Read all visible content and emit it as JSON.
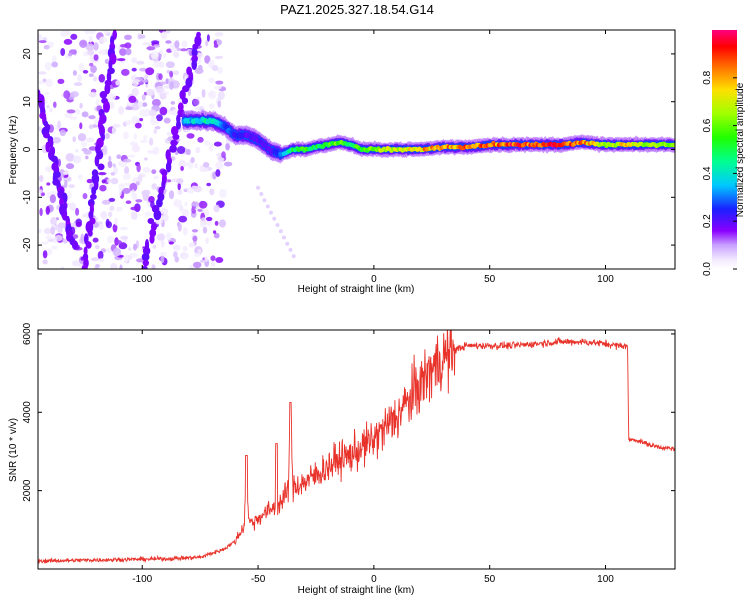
{
  "title": "PAZ1.2025.327.18.54.G14",
  "chart_data": [
    {
      "type": "heatmap",
      "name": "spectrogram",
      "xlabel": "Height of straight line (km)",
      "ylabel": "Frequency (Hz)",
      "xlim": [
        -145,
        130
      ],
      "ylim": [
        -25,
        25
      ],
      "xticks": [
        -100,
        -50,
        0,
        50,
        100
      ],
      "yticks": [
        -20,
        -10,
        0,
        10,
        20
      ],
      "xtick_labels": [
        "-100",
        "-50",
        "0",
        "50",
        "100"
      ],
      "ytick_labels": [
        "-20",
        "-10",
        "0",
        "10",
        "20"
      ],
      "colorbar": {
        "label": "Normalized spectral amplitude",
        "range": [
          0,
          1
        ],
        "ticks": [
          0.0,
          0.2,
          0.4,
          0.6,
          0.8
        ],
        "tick_labels": [
          "0.0",
          "0.2",
          "0.4",
          "0.6",
          "0.8"
        ]
      },
      "ridge": {
        "description": "dominant frequency track",
        "height_km": [
          -82,
          -75,
          -70,
          -65,
          -60,
          -55,
          -50,
          -45,
          -40,
          -35,
          -30,
          -25,
          -20,
          -15,
          -10,
          -5,
          0,
          10,
          20,
          30,
          40,
          50,
          60,
          70,
          80,
          90,
          100,
          110,
          120,
          130
        ],
        "frequency_hz": [
          6,
          6,
          6,
          5,
          3,
          3,
          2,
          0,
          -1,
          0,
          0,
          0.5,
          1,
          1.5,
          1,
          0,
          0,
          0,
          0,
          0.5,
          0.5,
          1,
          1,
          1,
          1,
          1.5,
          1,
          1,
          1,
          1
        ],
        "amplitude": [
          0.35,
          0.4,
          0.45,
          0.3,
          0.25,
          0.2,
          0.2,
          0.2,
          0.3,
          0.5,
          0.55,
          0.5,
          0.6,
          0.6,
          0.55,
          0.6,
          0.65,
          0.7,
          0.8,
          0.8,
          0.85,
          0.85,
          0.9,
          0.9,
          0.9,
          0.85,
          0.7,
          0.75,
          0.65,
          0.6
        ]
      }
    },
    {
      "type": "line",
      "name": "snr",
      "xlabel": "Height of straight line (km)",
      "ylabel": "SNR (10 * v/v)",
      "xlim": [
        -145,
        130
      ],
      "ylim": [
        0,
        6100
      ],
      "xticks": [
        -100,
        -50,
        0,
        50,
        100
      ],
      "yticks": [
        2000,
        4000,
        6000
      ],
      "xtick_labels": [
        "-100",
        "-50",
        "0",
        "50",
        "100"
      ],
      "ytick_labels": [
        "2000",
        "4000",
        "6000"
      ],
      "color": "#e8322a",
      "series": [
        {
          "name": "SNR",
          "x": [
            -145,
            -130,
            -110,
            -90,
            -75,
            -65,
            -60,
            -56,
            -55,
            -54,
            -52,
            -50,
            -45,
            -40,
            -37,
            -36,
            -35,
            -30,
            -25,
            -20,
            -15,
            -10,
            -5,
            0,
            5,
            10,
            15,
            20,
            25,
            30,
            35,
            40,
            50,
            60,
            70,
            80,
            90,
            100,
            105,
            109.5,
            110,
            113,
            120,
            130
          ],
          "y": [
            200,
            220,
            240,
            260,
            300,
            500,
            700,
            1100,
            2800,
            1200,
            1200,
            1300,
            1500,
            1700,
            2000,
            4200,
            2100,
            2200,
            2400,
            2600,
            2800,
            2900,
            3100,
            3300,
            3600,
            3900,
            4300,
            4700,
            5100,
            5400,
            5600,
            5700,
            5700,
            5700,
            5750,
            5800,
            5800,
            5750,
            5700,
            5700,
            3300,
            3300,
            3150,
            3050
          ]
        }
      ]
    }
  ]
}
